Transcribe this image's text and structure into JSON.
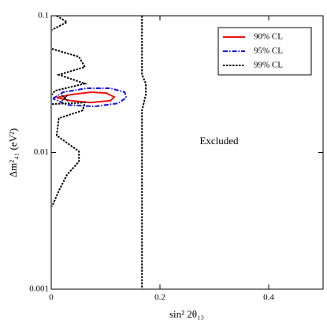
{
  "chart_data": {
    "type": "line",
    "xlabel": "sin² 2θ₁₃",
    "ylabel": "Δm²₄₁ (eV²)",
    "annotations": [
      "Excluded"
    ],
    "xlim": [
      0,
      0.5
    ],
    "xticks": [
      0,
      0.2,
      0.4
    ],
    "ylim": [
      0.001,
      0.1
    ],
    "yticks": [
      0.001,
      0.01,
      0.1
    ],
    "yscale": "log",
    "grid": false,
    "legend": "upper right",
    "marker": {
      "x": 0.025,
      "y": 0.025,
      "color": "#000000"
    },
    "series": [
      {
        "name": "90% CL",
        "color": "#ee1111",
        "dash": "solid",
        "x": [
          0.01,
          0.036,
          0.073,
          0.101,
          0.116,
          0.109,
          0.073,
          0.036,
          0.01
        ],
        "values": [
          0.0252,
          0.0265,
          0.0276,
          0.0272,
          0.0255,
          0.0239,
          0.0232,
          0.0239,
          0.0252
        ]
      },
      {
        "name": "95% CL",
        "color": "#1111dd",
        "dash": "dashdot",
        "x": [
          0.003,
          0.022,
          0.065,
          0.109,
          0.135,
          0.138,
          0.123,
          0.08,
          0.029,
          0.003
        ],
        "values": [
          0.0248,
          0.0276,
          0.0295,
          0.0295,
          0.0276,
          0.0252,
          0.0229,
          0.0217,
          0.0223,
          0.0248
        ]
      },
      {
        "name": "99% CL",
        "color": "#000000",
        "dash": "dotted",
        "x": [
          0.01,
          0.029,
          0.0015,
          null,
          0.0015,
          0.051,
          0.062,
          0.014,
          0.062,
          0.007,
          0.0015,
          null,
          0.0015,
          0.062,
          0.058,
          0.014,
          0.01,
          0.051,
          0.051,
          0.029,
          0.014,
          0.0015,
          null,
          0.167,
          0.167,
          0.174,
          0.174,
          0.167,
          0.167
        ],
        "values": [
          0.1,
          0.0899,
          0.0788,
          null,
          0.0573,
          0.0501,
          0.0422,
          0.037,
          0.0319,
          0.0283,
          0.0265,
          null,
          0.0226,
          0.0232,
          0.0203,
          0.0178,
          0.0133,
          0.0102,
          0.00859,
          0.00686,
          0.00525,
          0.00403,
          null,
          0.1,
          0.037,
          0.0319,
          0.0265,
          0.0203,
          0.001
        ]
      }
    ]
  }
}
